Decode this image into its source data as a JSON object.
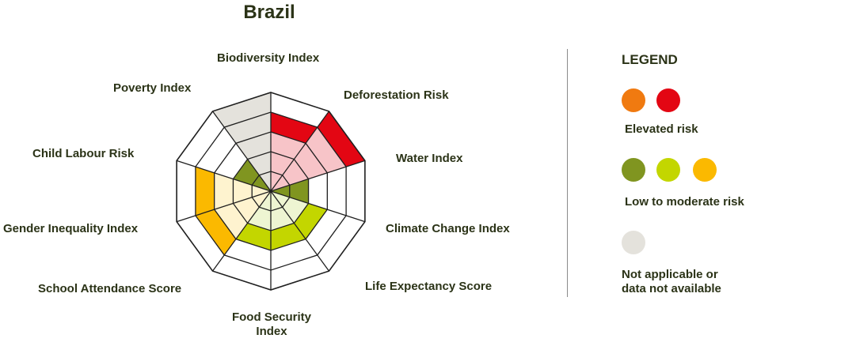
{
  "chart_data": {
    "type": "radar",
    "title": "Brazil",
    "axes": [
      "Biodiversity Index",
      "Deforestation Risk",
      "Water Index",
      "Climate Change Index",
      "Life Expectancy Score",
      "Food Security Index",
      "School Attendance Score",
      "Gender Inequality Index",
      "Poverty Index",
      "Child Labour Risk"
    ],
    "rings": 5,
    "values": [
      4,
      5,
      2,
      3,
      3,
      3,
      4,
      4,
      2,
      5
    ],
    "categories": [
      "elevated-red",
      "elevated-red",
      "low-olive",
      "low-lime",
      "low-lime",
      "low-lime",
      "moderate-amber",
      "moderate-amber",
      "low-olive",
      "not-applicable"
    ],
    "colors": {
      "elevated-red": {
        "outer": "#e30613",
        "inner": "#f7c4c8"
      },
      "low-olive": {
        "outer": "#809520",
        "inner": "#809520"
      },
      "low-lime": {
        "outer": "#c3d600",
        "inner": "#eef5d2"
      },
      "moderate-amber": {
        "outer": "#fbb900",
        "inner": "#fef3cf"
      },
      "not-applicable": {
        "outer": "#e4e2dc",
        "inner": "#e4e2dc"
      }
    }
  },
  "labels": {
    "biodiversity": "Biodiversity Index",
    "deforestation": "Deforestation Risk",
    "water": "Water Index",
    "climate": "Climate Change Index",
    "life": "Life Expectancy Score",
    "food_line1": "Food Security",
    "food_line2": "Index",
    "school": "School Attendance Score",
    "gender": "Gender Inequality Index",
    "poverty": "Poverty Index",
    "child": "Child Labour Risk"
  },
  "legend": {
    "title": "LEGEND",
    "elevated": {
      "label": "Elevated risk",
      "colors": [
        "#f07a10",
        "#e30613"
      ]
    },
    "low": {
      "label": "Low to moderate risk",
      "colors": [
        "#809520",
        "#c3d600",
        "#fbb900"
      ]
    },
    "na": {
      "label_line1": "Not applicable or",
      "label_line2": "data not available",
      "colors": [
        "#e4e2dc"
      ]
    }
  }
}
